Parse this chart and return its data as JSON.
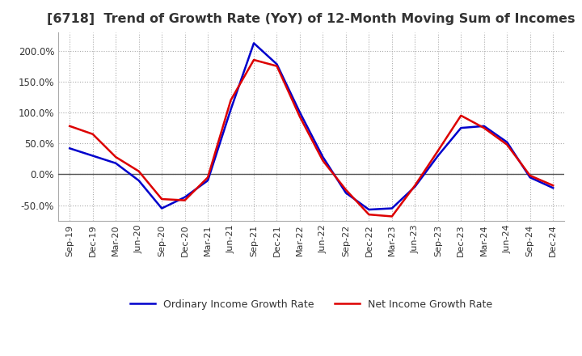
{
  "title": "[6718]  Trend of Growth Rate (YoY) of 12-Month Moving Sum of Incomes",
  "title_fontsize": 11.5,
  "ylim": [
    -75,
    230
  ],
  "yticks": [
    -50,
    0,
    50,
    100,
    150,
    200
  ],
  "background_color": "#ffffff",
  "grid_color": "#aaaaaa",
  "ordinary_color": "#0000cc",
  "net_color": "#dd0000",
  "legend_labels": [
    "Ordinary Income Growth Rate",
    "Net Income Growth Rate"
  ],
  "x_labels": [
    "Sep-19",
    "Dec-19",
    "Mar-20",
    "Jun-20",
    "Sep-20",
    "Dec-20",
    "Mar-21",
    "Jun-21",
    "Sep-21",
    "Dec-21",
    "Mar-22",
    "Jun-22",
    "Sep-22",
    "Dec-22",
    "Mar-23",
    "Jun-23",
    "Sep-23",
    "Dec-23",
    "Mar-24",
    "Jun-24",
    "Sep-24",
    "Dec-24"
  ],
  "ordinary_income": [
    42,
    30,
    18,
    -10,
    -55,
    -37,
    -10,
    105,
    212,
    178,
    100,
    28,
    -30,
    -57,
    -55,
    -20,
    30,
    75,
    78,
    52,
    -5,
    -22
  ],
  "net_income": [
    78,
    65,
    28,
    5,
    -40,
    -42,
    -5,
    120,
    185,
    175,
    93,
    22,
    -25,
    -65,
    -68,
    -18,
    38,
    95,
    75,
    48,
    -2,
    -18
  ]
}
